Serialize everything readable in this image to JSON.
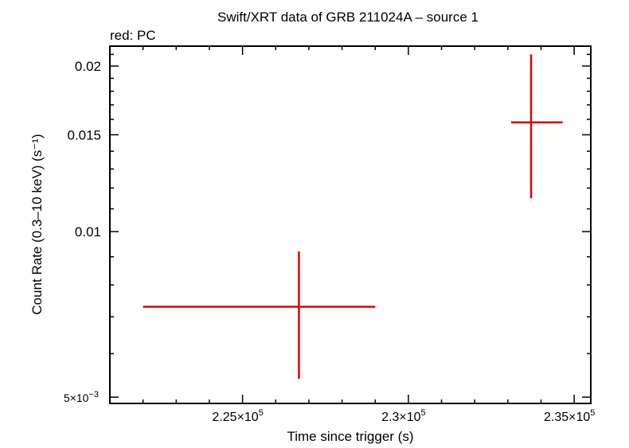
{
  "chart_data": {
    "type": "scatter",
    "title": "Swift/XRT data of GRB 211024A – source 1",
    "subtitle": "red: PC",
    "xlabel": "Time since trigger (s)",
    "ylabel": "Count Rate (0.3–10 keV) (s⁻¹)",
    "xlim": [
      221000,
      235500
    ],
    "ylim": [
      0.00487,
      0.02174
    ],
    "log_y": true,
    "grid": false,
    "x_ticks": [
      {
        "value": 225000,
        "mantissa": "2.25×10",
        "exp": "5"
      },
      {
        "value": 230000,
        "mantissa": "2.3×10",
        "exp": "5"
      },
      {
        "value": 235000,
        "mantissa": "2.35×10",
        "exp": "5"
      }
    ],
    "y_ticks": [
      {
        "value": 0.005,
        "mantissa": "5×10",
        "exp": "−3"
      },
      {
        "value": 0.01,
        "mantissa": "0.01",
        "exp": ""
      },
      {
        "value": 0.015,
        "mantissa": "0.015",
        "exp": ""
      },
      {
        "value": 0.02,
        "mantissa": "0.02",
        "exp": ""
      }
    ],
    "series": [
      {
        "color": "#dd0000",
        "points": [
          {
            "x": 226700,
            "xerr_minus": 4700,
            "xerr_plus": 2300,
            "y": 0.0073,
            "yerr_minus": 0.0019,
            "yerr_plus": 0.0019
          },
          {
            "x": 233700,
            "xerr_minus": 600,
            "xerr_plus": 950,
            "y": 0.0158,
            "yerr_minus": 0.0043,
            "yerr_plus": 0.0052
          }
        ]
      }
    ]
  }
}
